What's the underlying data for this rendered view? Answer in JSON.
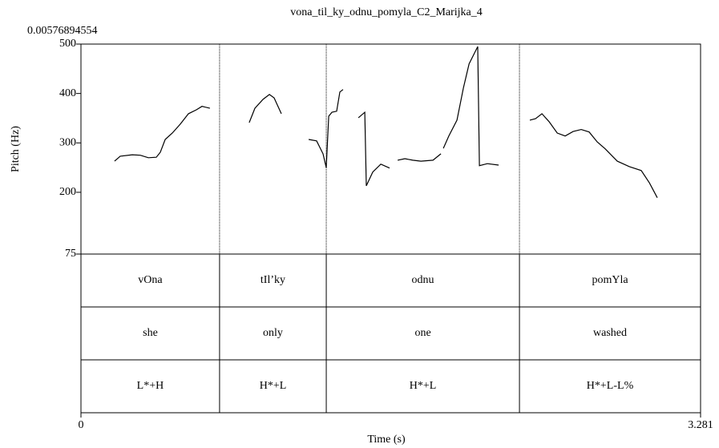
{
  "chart_data": {
    "type": "line",
    "title": "vona_til_ky_odnu_pomyla_C2_Marijka_4",
    "annotation": "0.00576894554",
    "xlabel": "Time (s)",
    "ylabel": "Pitch (Hz)",
    "xlim": [
      0,
      3.281
    ],
    "xticks": [
      0,
      3.281
    ],
    "ylim": [
      75,
      500
    ],
    "yticks": [
      75,
      200,
      300,
      400,
      500
    ],
    "color": "#000000",
    "x": [
      0.178,
      0.208,
      0.272,
      0.314,
      0.357,
      0.399,
      0.42,
      0.446,
      0.484,
      0.526,
      0.569,
      0.611,
      0.641,
      0.683,
      0.78,
      0.891,
      0.921,
      0.964,
      0.998,
      1.023,
      1.061,
      1.13,
      1.206,
      1.248,
      1.282,
      1.299,
      1.312,
      1.329,
      1.354,
      1.371,
      1.388,
      1.43,
      1.469,
      1.503,
      1.511,
      1.545,
      1.588,
      1.634,
      1.655,
      1.677,
      1.715,
      1.757,
      1.8,
      1.864,
      1.906,
      1.912,
      1.919,
      1.948,
      1.991,
      2.025,
      2.055,
      2.084,
      2.101,
      2.11,
      2.152,
      2.212,
      2.3,
      2.377,
      2.407,
      2.441,
      2.479,
      2.522,
      2.564,
      2.606,
      2.649,
      2.691,
      2.734,
      2.776,
      2.84,
      2.904,
      2.967,
      3.01,
      3.052
    ],
    "values": [
      263,
      273,
      276,
      275,
      270,
      271,
      281,
      307,
      320,
      338,
      359,
      367,
      374,
      370,
      null,
      341,
      370,
      388,
      398,
      391,
      359,
      null,
      307,
      304,
      278,
      250,
      354,
      362,
      364,
      403,
      408,
      null,
      351,
      362,
      213,
      241,
      257,
      249,
      null,
      265,
      268,
      265,
      263,
      265,
      278,
      null,
      289,
      314,
      346,
      411,
      460,
      482,
      495,
      254,
      258,
      255,
      null,
      346,
      349,
      359,
      343,
      320,
      314,
      323,
      327,
      322,
      302,
      288,
      263,
      252,
      244,
      219,
      189
    ],
    "boundaries": [
      0.734,
      1.299,
      2.322
    ],
    "tiers": [
      {
        "labels": [
          "vOna",
          "tIl’ky",
          "odnu",
          "pomYla"
        ]
      },
      {
        "labels": [
          "she",
          "only",
          "one",
          "washed"
        ]
      },
      {
        "labels": [
          "L*+H",
          "H*+L",
          "H*+L",
          "H*+L-L%"
        ]
      }
    ]
  }
}
